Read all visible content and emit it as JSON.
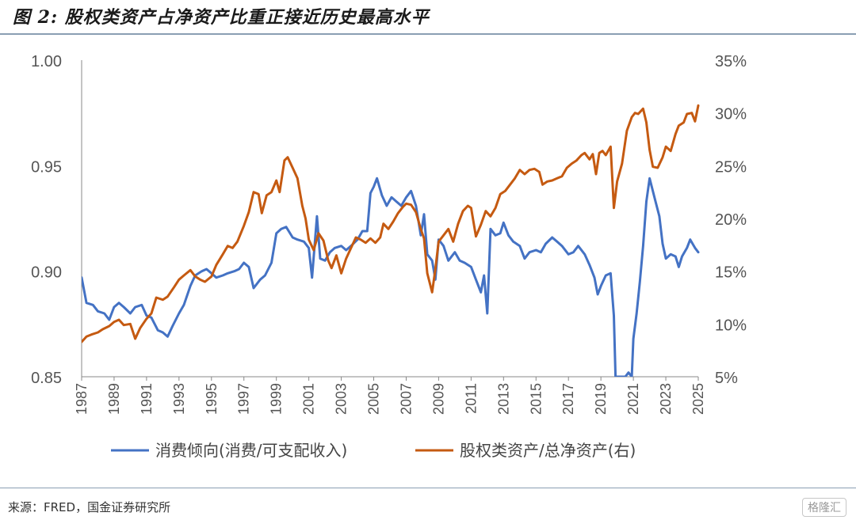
{
  "title": "图 2: 股权类资产占净资产比重正接近历史最高水平",
  "source": "来源：FRED，国金证券研究所",
  "watermark": "格隆汇",
  "chart_data": {
    "type": "line",
    "grid": false,
    "legend_position": "bottom",
    "xlim": [
      1987,
      2025
    ],
    "x_ticks": [
      "1987",
      "1989",
      "1991",
      "1993",
      "1995",
      "1997",
      "1999",
      "2001",
      "2003",
      "2005",
      "2007",
      "2009",
      "2011",
      "2013",
      "2015",
      "2017",
      "2019",
      "2021",
      "2023",
      "2025"
    ],
    "y_left": {
      "lim": [
        0.85,
        1.0
      ],
      "ticks": [
        "1.00",
        "0.95",
        "0.90",
        "0.85"
      ],
      "tick_values": [
        1.0,
        0.95,
        0.9,
        0.85
      ]
    },
    "y_right": {
      "lim": [
        5,
        35
      ],
      "ticks": [
        "35%",
        "30%",
        "25%",
        "20%",
        "15%",
        "10%",
        "5%"
      ],
      "tick_values": [
        35,
        30,
        25,
        20,
        15,
        10,
        5
      ]
    },
    "series": [
      {
        "name": "消费倾向(消费/可支配收入)",
        "axis": "left",
        "color": "#4472c4",
        "points": [
          [
            1987.0,
            0.897
          ],
          [
            1987.3,
            0.885
          ],
          [
            1987.7,
            0.884
          ],
          [
            1988.0,
            0.881
          ],
          [
            1988.4,
            0.88
          ],
          [
            1988.7,
            0.877
          ],
          [
            1989.0,
            0.883
          ],
          [
            1989.3,
            0.885
          ],
          [
            1989.6,
            0.883
          ],
          [
            1990.0,
            0.88
          ],
          [
            1990.3,
            0.883
          ],
          [
            1990.7,
            0.884
          ],
          [
            1991.0,
            0.879
          ],
          [
            1991.3,
            0.878
          ],
          [
            1991.7,
            0.872
          ],
          [
            1992.0,
            0.871
          ],
          [
            1992.3,
            0.869
          ],
          [
            1992.6,
            0.874
          ],
          [
            1993.0,
            0.88
          ],
          [
            1993.3,
            0.884
          ],
          [
            1993.7,
            0.893
          ],
          [
            1994.0,
            0.898
          ],
          [
            1994.4,
            0.9
          ],
          [
            1994.7,
            0.901
          ],
          [
            1995.0,
            0.899
          ],
          [
            1995.3,
            0.897
          ],
          [
            1995.7,
            0.898
          ],
          [
            1996.0,
            0.899
          ],
          [
            1996.4,
            0.9
          ],
          [
            1996.7,
            0.901
          ],
          [
            1997.0,
            0.904
          ],
          [
            1997.3,
            0.902
          ],
          [
            1997.6,
            0.892
          ],
          [
            1998.0,
            0.896
          ],
          [
            1998.3,
            0.898
          ],
          [
            1998.7,
            0.904
          ],
          [
            1999.0,
            0.918
          ],
          [
            1999.3,
            0.92
          ],
          [
            1999.6,
            0.921
          ],
          [
            2000.0,
            0.916
          ],
          [
            2000.3,
            0.915
          ],
          [
            2000.7,
            0.914
          ],
          [
            2001.0,
            0.911
          ],
          [
            2001.2,
            0.897
          ],
          [
            2001.5,
            0.926
          ],
          [
            2001.7,
            0.906
          ],
          [
            2002.0,
            0.905
          ],
          [
            2002.3,
            0.909
          ],
          [
            2002.6,
            0.911
          ],
          [
            2003.0,
            0.912
          ],
          [
            2003.3,
            0.91
          ],
          [
            2003.6,
            0.912
          ],
          [
            2004.0,
            0.915
          ],
          [
            2004.3,
            0.919
          ],
          [
            2004.6,
            0.919
          ],
          [
            2004.8,
            0.937
          ],
          [
            2005.0,
            0.94
          ],
          [
            2005.2,
            0.944
          ],
          [
            2005.5,
            0.936
          ],
          [
            2005.8,
            0.931
          ],
          [
            2006.1,
            0.935
          ],
          [
            2006.4,
            0.933
          ],
          [
            2006.7,
            0.931
          ],
          [
            2007.0,
            0.935
          ],
          [
            2007.3,
            0.938
          ],
          [
            2007.6,
            0.931
          ],
          [
            2007.9,
            0.917
          ],
          [
            2008.1,
            0.927
          ],
          [
            2008.3,
            0.908
          ],
          [
            2008.6,
            0.905
          ],
          [
            2008.8,
            0.896
          ],
          [
            2009.0,
            0.915
          ],
          [
            2009.3,
            0.912
          ],
          [
            2009.6,
            0.905
          ],
          [
            2010.0,
            0.909
          ],
          [
            2010.3,
            0.905
          ],
          [
            2010.6,
            0.904
          ],
          [
            2011.0,
            0.902
          ],
          [
            2011.3,
            0.896
          ],
          [
            2011.6,
            0.89
          ],
          [
            2011.8,
            0.898
          ],
          [
            2012.0,
            0.88
          ],
          [
            2012.2,
            0.92
          ],
          [
            2012.5,
            0.917
          ],
          [
            2012.8,
            0.918
          ],
          [
            2013.0,
            0.923
          ],
          [
            2013.3,
            0.917
          ],
          [
            2013.6,
            0.914
          ],
          [
            2014.0,
            0.912
          ],
          [
            2014.3,
            0.906
          ],
          [
            2014.6,
            0.909
          ],
          [
            2015.0,
            0.91
          ],
          [
            2015.3,
            0.909
          ],
          [
            2015.6,
            0.913
          ],
          [
            2016.0,
            0.916
          ],
          [
            2016.3,
            0.914
          ],
          [
            2016.6,
            0.912
          ],
          [
            2017.0,
            0.908
          ],
          [
            2017.3,
            0.909
          ],
          [
            2017.6,
            0.912
          ],
          [
            2018.0,
            0.908
          ],
          [
            2018.3,
            0.903
          ],
          [
            2018.6,
            0.897
          ],
          [
            2018.8,
            0.889
          ],
          [
            2019.0,
            0.893
          ],
          [
            2019.3,
            0.898
          ],
          [
            2019.6,
            0.899
          ],
          [
            2019.8,
            0.879
          ],
          [
            2019.9,
            0.85
          ],
          [
            2020.5,
            0.85
          ],
          [
            2020.7,
            0.852
          ],
          [
            2020.9,
            0.85
          ],
          [
            2021.0,
            0.868
          ],
          [
            2021.2,
            0.88
          ],
          [
            2021.4,
            0.895
          ],
          [
            2021.6,
            0.912
          ],
          [
            2021.8,
            0.933
          ],
          [
            2022.0,
            0.944
          ],
          [
            2022.3,
            0.935
          ],
          [
            2022.6,
            0.926
          ],
          [
            2022.8,
            0.913
          ],
          [
            2023.0,
            0.906
          ],
          [
            2023.3,
            0.908
          ],
          [
            2023.6,
            0.907
          ],
          [
            2023.8,
            0.902
          ],
          [
            2024.0,
            0.907
          ],
          [
            2024.3,
            0.911
          ],
          [
            2024.5,
            0.915
          ],
          [
            2024.8,
            0.911
          ],
          [
            2025.0,
            0.909
          ]
        ]
      },
      {
        "name": "股权类资产/总净资产(右)",
        "axis": "right",
        "color": "#c55a11",
        "points": [
          [
            1987.0,
            8.3
          ],
          [
            1987.3,
            8.8
          ],
          [
            1987.6,
            9.0
          ],
          [
            1988.0,
            9.2
          ],
          [
            1988.3,
            9.5
          ],
          [
            1988.7,
            9.8
          ],
          [
            1989.0,
            10.2
          ],
          [
            1989.3,
            10.4
          ],
          [
            1989.6,
            9.9
          ],
          [
            1990.0,
            10.0
          ],
          [
            1990.3,
            8.6
          ],
          [
            1990.6,
            9.6
          ],
          [
            1991.0,
            10.5
          ],
          [
            1991.3,
            11.0
          ],
          [
            1991.6,
            12.5
          ],
          [
            1992.0,
            12.3
          ],
          [
            1992.3,
            12.6
          ],
          [
            1992.7,
            13.5
          ],
          [
            1993.0,
            14.2
          ],
          [
            1993.3,
            14.6
          ],
          [
            1993.7,
            15.1
          ],
          [
            1994.0,
            14.5
          ],
          [
            1994.3,
            14.2
          ],
          [
            1994.6,
            14.0
          ],
          [
            1995.0,
            14.5
          ],
          [
            1995.3,
            15.6
          ],
          [
            1995.7,
            16.6
          ],
          [
            1996.0,
            17.4
          ],
          [
            1996.3,
            17.2
          ],
          [
            1996.6,
            17.8
          ],
          [
            1997.0,
            19.3
          ],
          [
            1997.3,
            20.6
          ],
          [
            1997.6,
            22.5
          ],
          [
            1997.9,
            22.3
          ],
          [
            1998.1,
            20.5
          ],
          [
            1998.4,
            22.2
          ],
          [
            1998.7,
            22.5
          ],
          [
            1999.0,
            23.6
          ],
          [
            1999.2,
            22.5
          ],
          [
            1999.5,
            25.5
          ],
          [
            1999.7,
            25.8
          ],
          [
            2000.0,
            24.8
          ],
          [
            2000.3,
            23.8
          ],
          [
            2000.6,
            21.2
          ],
          [
            2000.8,
            20.0
          ],
          [
            2001.0,
            18.0
          ],
          [
            2001.3,
            17.0
          ],
          [
            2001.6,
            18.6
          ],
          [
            2001.9,
            17.9
          ],
          [
            2002.2,
            16.0
          ],
          [
            2002.4,
            15.3
          ],
          [
            2002.7,
            16.5
          ],
          [
            2003.0,
            14.8
          ],
          [
            2003.3,
            16.2
          ],
          [
            2003.6,
            17.2
          ],
          [
            2003.9,
            18.2
          ],
          [
            2004.2,
            18.0
          ],
          [
            2004.5,
            17.7
          ],
          [
            2004.8,
            18.1
          ],
          [
            2005.1,
            17.7
          ],
          [
            2005.4,
            18.2
          ],
          [
            2005.6,
            19.5
          ],
          [
            2005.9,
            19.0
          ],
          [
            2006.2,
            19.7
          ],
          [
            2006.5,
            20.5
          ],
          [
            2006.8,
            21.1
          ],
          [
            2007.0,
            21.4
          ],
          [
            2007.3,
            21.3
          ],
          [
            2007.6,
            20.6
          ],
          [
            2007.9,
            19.0
          ],
          [
            2008.1,
            18.1
          ],
          [
            2008.3,
            14.8
          ],
          [
            2008.6,
            13.0
          ],
          [
            2008.8,
            15.2
          ],
          [
            2009.0,
            17.8
          ],
          [
            2009.3,
            18.4
          ],
          [
            2009.6,
            19.0
          ],
          [
            2009.9,
            17.8
          ],
          [
            2010.2,
            19.5
          ],
          [
            2010.5,
            20.7
          ],
          [
            2010.8,
            21.2
          ],
          [
            2011.0,
            21.0
          ],
          [
            2011.3,
            18.3
          ],
          [
            2011.6,
            19.4
          ],
          [
            2011.9,
            20.7
          ],
          [
            2012.2,
            20.2
          ],
          [
            2012.5,
            21.0
          ],
          [
            2012.8,
            22.3
          ],
          [
            2013.1,
            22.6
          ],
          [
            2013.4,
            23.2
          ],
          [
            2013.7,
            23.8
          ],
          [
            2014.0,
            24.6
          ],
          [
            2014.3,
            24.2
          ],
          [
            2014.6,
            24.6
          ],
          [
            2014.9,
            24.7
          ],
          [
            2015.2,
            24.4
          ],
          [
            2015.4,
            23.2
          ],
          [
            2015.7,
            23.5
          ],
          [
            2016.0,
            23.6
          ],
          [
            2016.3,
            23.8
          ],
          [
            2016.6,
            24.0
          ],
          [
            2016.9,
            24.8
          ],
          [
            2017.2,
            25.2
          ],
          [
            2017.5,
            25.5
          ],
          [
            2017.8,
            26.0
          ],
          [
            2018.0,
            26.2
          ],
          [
            2018.3,
            25.6
          ],
          [
            2018.5,
            26.1
          ],
          [
            2018.7,
            24.2
          ],
          [
            2018.9,
            26.2
          ],
          [
            2019.1,
            26.4
          ],
          [
            2019.3,
            26.0
          ],
          [
            2019.6,
            26.8
          ],
          [
            2019.8,
            21.0
          ],
          [
            2020.0,
            23.5
          ],
          [
            2020.3,
            25.2
          ],
          [
            2020.6,
            28.3
          ],
          [
            2020.9,
            29.6
          ],
          [
            2021.1,
            30.0
          ],
          [
            2021.3,
            29.9
          ],
          [
            2021.6,
            30.4
          ],
          [
            2021.8,
            29.1
          ],
          [
            2022.0,
            26.5
          ],
          [
            2022.2,
            24.9
          ],
          [
            2022.5,
            24.8
          ],
          [
            2022.8,
            25.8
          ],
          [
            2023.0,
            26.8
          ],
          [
            2023.3,
            26.4
          ],
          [
            2023.6,
            28.0
          ],
          [
            2023.8,
            28.8
          ],
          [
            2024.1,
            29.1
          ],
          [
            2024.3,
            29.9
          ],
          [
            2024.6,
            30.0
          ],
          [
            2024.8,
            29.2
          ],
          [
            2025.0,
            30.7
          ]
        ]
      }
    ]
  }
}
